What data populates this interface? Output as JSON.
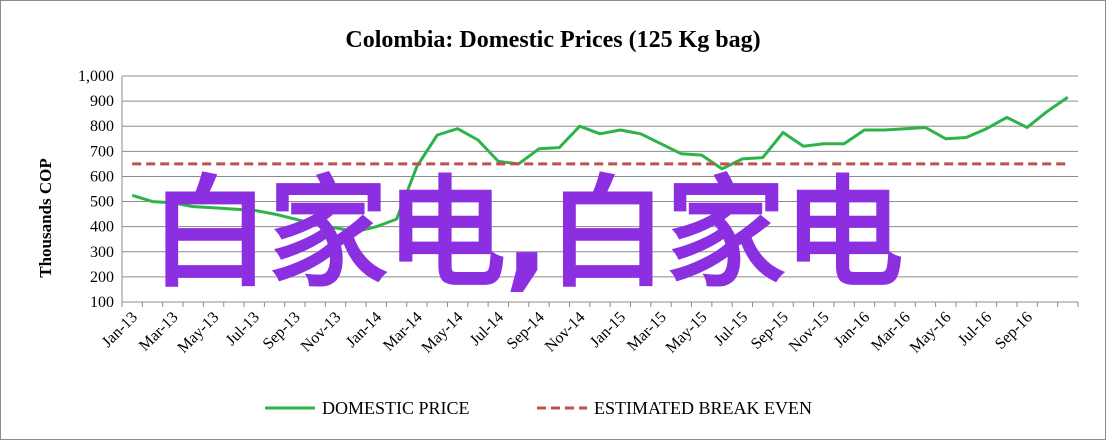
{
  "chart_data": {
    "type": "line",
    "title": "Colombia: Domestic Prices (125 Kg bag)",
    "ylabel": "Thousands COP",
    "xlabel": "",
    "ylim": [
      100,
      1000
    ],
    "yticks": [
      "100",
      "200",
      "300",
      "400",
      "500",
      "600",
      "700",
      "800",
      "900",
      "1,000"
    ],
    "ytick_values": [
      100,
      200,
      300,
      400,
      500,
      600,
      700,
      800,
      900,
      1000
    ],
    "x_tick_labels": [
      "Jan-13",
      "Mar-13",
      "May-13",
      "Jul-13",
      "Sep-13",
      "Nov-13",
      "Jan-14",
      "Mar-14",
      "May-14",
      "Jul-14",
      "Sep-14",
      "Nov-14",
      "Jan-15",
      "Mar-15",
      "May-15",
      "Jul-15",
      "Sep-15",
      "Nov-15",
      "Jan-16",
      "Mar-16",
      "May-16",
      "Jul-16",
      "Sep-16"
    ],
    "x": [
      "Jan-13",
      "Feb-13",
      "Mar-13",
      "Apr-13",
      "May-13",
      "Jun-13",
      "Jul-13",
      "Aug-13",
      "Sep-13",
      "Oct-13",
      "Nov-13",
      "Dec-13",
      "Jan-14",
      "Feb-14",
      "Mar-14",
      "Apr-14",
      "May-14",
      "Jun-14",
      "Jul-14",
      "Aug-14",
      "Sep-14",
      "Oct-14",
      "Nov-14",
      "Dec-14",
      "Jan-15",
      "Feb-15",
      "Mar-15",
      "Apr-15",
      "May-15",
      "Jun-15",
      "Jul-15",
      "Aug-15",
      "Sep-15",
      "Oct-15",
      "Nov-15",
      "Dec-15",
      "Jan-16",
      "Feb-16",
      "Mar-16",
      "Apr-16",
      "May-16",
      "Jun-16",
      "Jul-16",
      "Aug-16",
      "Sep-16",
      "Oct-16",
      "Nov-16"
    ],
    "grid": true,
    "legend_placement": "bottom",
    "series": [
      {
        "name": "DOMESTIC PRICE",
        "color": "#2db34a",
        "style": "solid",
        "values": [
          525,
          500,
          495,
          480,
          475,
          470,
          465,
          450,
          430,
          410,
          395,
          380,
          400,
          430,
          640,
          765,
          790,
          745,
          660,
          650,
          710,
          715,
          800,
          770,
          785,
          770,
          730,
          690,
          685,
          630,
          670,
          675,
          775,
          720,
          730,
          730,
          785,
          785,
          790,
          795,
          750,
          755,
          790,
          835,
          795,
          860,
          915
        ]
      },
      {
        "name": "ESTIMATED BREAK EVEN",
        "color": "#c0504d",
        "style": "dashed",
        "values": [
          650,
          650,
          650,
          650,
          650,
          650,
          650,
          650,
          650,
          650,
          650,
          650,
          650,
          650,
          650,
          650,
          650,
          650,
          650,
          650,
          650,
          650,
          650,
          650,
          650,
          650,
          650,
          650,
          650,
          650,
          650,
          650,
          650,
          650,
          650,
          650,
          650,
          650,
          650,
          650,
          650,
          650,
          650,
          650,
          650,
          650,
          650
        ]
      }
    ]
  },
  "watermark": "白家电,白家电"
}
